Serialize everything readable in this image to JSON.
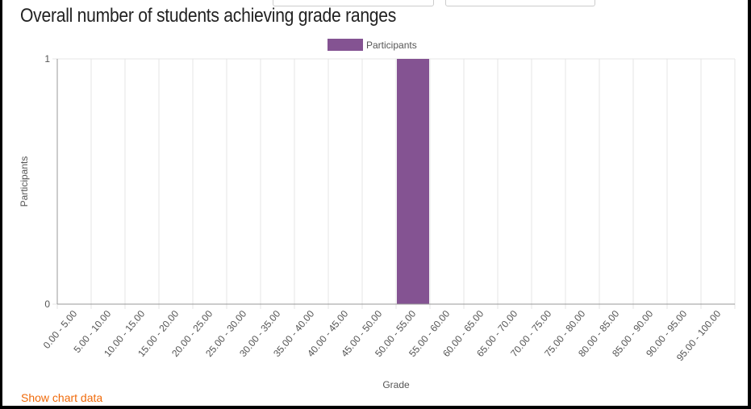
{
  "page": {
    "title": "Overall number of students achieving grade ranges",
    "show_chart_data_link": "Show chart data"
  },
  "chart_data": {
    "type": "bar",
    "title": "Overall number of students achieving grade ranges",
    "categories": [
      "0.00 - 5.00",
      "5.00 - 10.00",
      "10.00 - 15.00",
      "15.00 - 20.00",
      "20.00 - 25.00",
      "25.00 - 30.00",
      "30.00 - 35.00",
      "35.00 - 40.00",
      "40.00 - 45.00",
      "45.00 - 50.00",
      "50.00 - 55.00",
      "55.00 - 60.00",
      "60.00 - 65.00",
      "65.00 - 70.00",
      "70.00 - 75.00",
      "75.00 - 80.00",
      "80.00 - 85.00",
      "85.00 - 90.00",
      "90.00 - 95.00",
      "95.00 - 100.00"
    ],
    "series": [
      {
        "name": "Participants",
        "color": "#845392",
        "values": [
          0,
          0,
          0,
          0,
          0,
          0,
          0,
          0,
          0,
          0,
          1,
          0,
          0,
          0,
          0,
          0,
          0,
          0,
          0,
          0
        ]
      }
    ],
    "xlabel": "Grade",
    "ylabel": "Participants",
    "ylim": [
      0,
      1
    ],
    "yticks": [
      "0",
      "1"
    ],
    "legend_position": "top",
    "grid": true
  }
}
